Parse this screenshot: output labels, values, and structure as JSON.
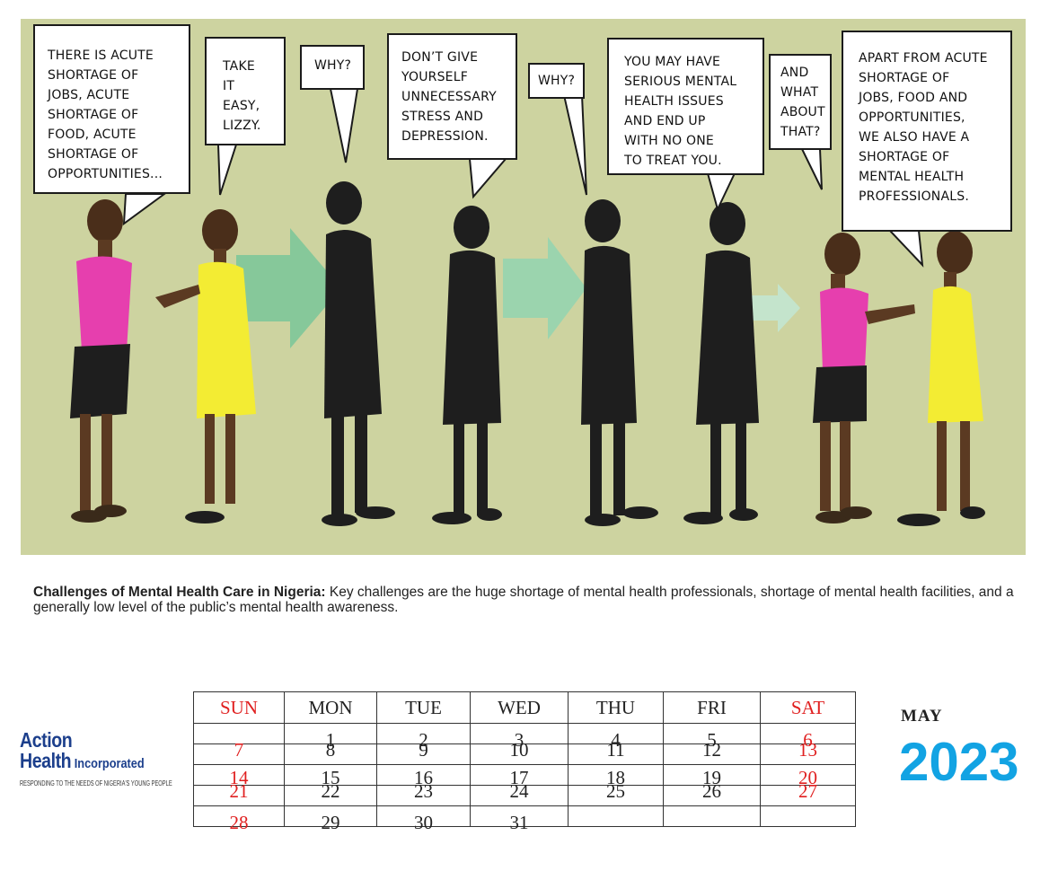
{
  "comic": {
    "bubbles": [
      "THERE IS ACUTE\nSHORTAGE OF\nJOBS, ACUTE\nSHORTAGE OF\nFOOD, ACUTE\nSHORTAGE OF\nOPPORTUNITIES...",
      "TAKE\nIT\nEASY,\nLIZZY.",
      "WHY?",
      "DON’T GIVE\nYOURSELF\nUNNECESSARY\nSTRESS AND\nDEPRESSION.",
      "WHY?",
      "YOU MAY HAVE\nSERIOUS MENTAL\nHEALTH ISSUES\nAND END UP\nWITH  NO ONE\nTO TREAT YOU.",
      "AND\nWHAT\nABOUT\nTHAT?",
      "APART FROM ACUTE\nSHORTAGE OF\nJOBS, FOOD AND\nOPPORTUNITIES,\nWE ALSO HAVE A\nSHORTAGE OF\nMENTAL HEALTH\nPROFESSIONALS."
    ],
    "colors": {
      "background": "#cdd3a0",
      "arrow": "#8ecfa4",
      "pink_top": "#e63fae",
      "yellow_dress": "#f3ec33",
      "silhouette": "#1e1e1e",
      "skin": "#5b3a22"
    }
  },
  "caption": {
    "title": "Challenges of Mental Health Care in Nigeria:",
    "body": " Key challenges are the huge shortage of mental health professionals, shortage of mental health facilities, and a generally low level of the public’s mental health awareness."
  },
  "logo": {
    "line1": "Action",
    "line2_main": "Health",
    "line2_small": " Incorporated",
    "tagline": "RESPONDING TO THE NEEDS OF NIGERIA'S YOUNG PEOPLE"
  },
  "calendar": {
    "month": "MAY",
    "year": "2023",
    "days": [
      "SUN",
      "MON",
      "TUE",
      "WED",
      "THU",
      "FRI",
      "SAT"
    ],
    "weeks": [
      [
        "",
        "1",
        "2",
        "3",
        "4",
        "5",
        "6"
      ],
      [
        "7",
        "8",
        "9",
        "10",
        "11",
        "12",
        "13"
      ],
      [
        "14",
        "15",
        "16",
        "17",
        "18",
        "19",
        "20"
      ],
      [
        "21",
        "22",
        "23",
        "24",
        "25",
        "26",
        "27"
      ],
      [
        "28",
        "29",
        "30",
        "31",
        "",
        "",
        ""
      ]
    ],
    "weekend_color": "#e02020",
    "year_color": "#12a3e3"
  }
}
